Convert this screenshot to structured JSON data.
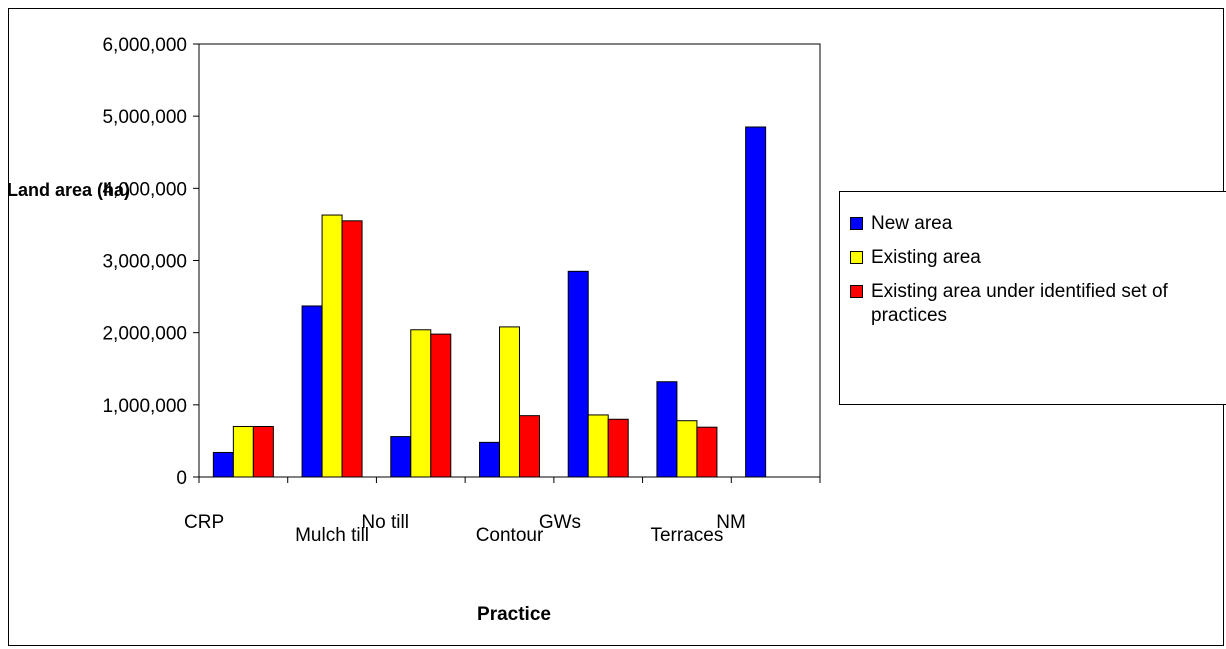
{
  "chart_data": {
    "type": "bar",
    "title": "",
    "xlabel": "Practice",
    "ylabel": "Land area (ha)",
    "ylim": [
      0,
      6000000
    ],
    "yticks": [
      "0",
      "1,000,000",
      "2,000,000",
      "3,000,000",
      "4,000,000",
      "5,000,000",
      "6,000,000"
    ],
    "categories": [
      "CRP",
      "Mulch till",
      "No till",
      "Contour",
      "GWs",
      "Terraces",
      "NM"
    ],
    "series": [
      {
        "name": "New area",
        "color": "#0000FF",
        "values": [
          340000,
          2370000,
          560000,
          480000,
          2850000,
          1320000,
          4850000
        ]
      },
      {
        "name": "Existing area",
        "color": "#FFFF00",
        "values": [
          700000,
          3630000,
          2040000,
          2080000,
          860000,
          780000,
          null
        ]
      },
      {
        "name": "Existing area under identified set of practices",
        "color": "#FF0000",
        "values": [
          700000,
          3550000,
          1980000,
          850000,
          800000,
          690000,
          null
        ]
      }
    ],
    "grid": false,
    "legend_position": "right"
  },
  "legend": {
    "items": [
      {
        "label": "New area",
        "color": "#0000FF"
      },
      {
        "label": "Existing area",
        "color": "#FFFF00"
      },
      {
        "label": "Existing area under identified set of practices",
        "color": "#FF0000"
      }
    ]
  }
}
